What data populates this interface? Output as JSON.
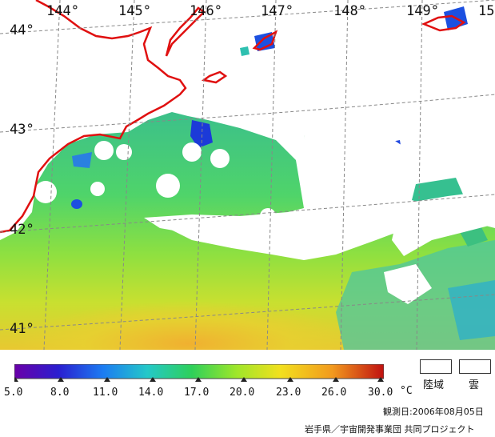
{
  "map": {
    "longitude_labels": [
      "144°",
      "145°",
      "146°",
      "147°",
      "148°",
      "149°",
      "15"
    ],
    "latitude_labels": [
      "44°",
      "43°",
      "42°",
      "41°"
    ],
    "coastline_color": "#e01010",
    "cloud_color": "#ffffff"
  },
  "colorbar": {
    "unit": "°C",
    "ticks": [
      "5.0",
      "8.0",
      "11.0",
      "14.0",
      "17.0",
      "20.0",
      "23.0",
      "26.0",
      "30.0"
    ],
    "colors": [
      "#6a00a8",
      "#2a1fd0",
      "#1c7cf2",
      "#24c8c8",
      "#2ed05a",
      "#9ee62a",
      "#f2e01e",
      "#f29a1e",
      "#c01010"
    ]
  },
  "legend": {
    "land_label": "陸域",
    "cloud_label": "雲"
  },
  "observation_date": "観測日:2006年08月05日",
  "credit": "岩手県／宇宙開発事業団 共同プロジェクト"
}
